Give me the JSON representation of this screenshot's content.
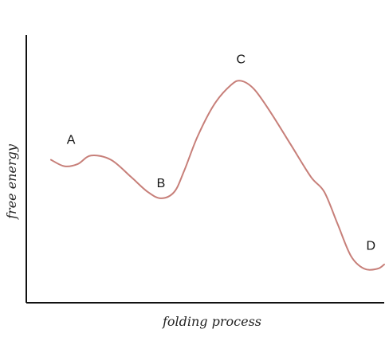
{
  "chart_data": {
    "type": "line",
    "xlabel": "folding process",
    "ylabel": "free energy",
    "grid": false,
    "legend": "none",
    "colors": {
      "axis": "#111111",
      "curve": "#c77f79"
    },
    "series": [
      {
        "values": [
          {
            "x": 0.0,
            "y": 0.55
          },
          {
            "x": 0.04,
            "y": 0.52
          },
          {
            "x": 0.08,
            "y": 0.53
          },
          {
            "x": 0.12,
            "y": 0.57
          },
          {
            "x": 0.18,
            "y": 0.55
          },
          {
            "x": 0.24,
            "y": 0.47
          },
          {
            "x": 0.29,
            "y": 0.4
          },
          {
            "x": 0.33,
            "y": 0.37
          },
          {
            "x": 0.37,
            "y": 0.4
          },
          {
            "x": 0.4,
            "y": 0.5
          },
          {
            "x": 0.44,
            "y": 0.66
          },
          {
            "x": 0.49,
            "y": 0.81
          },
          {
            "x": 0.54,
            "y": 0.9
          },
          {
            "x": 0.57,
            "y": 0.92
          },
          {
            "x": 0.61,
            "y": 0.88
          },
          {
            "x": 0.66,
            "y": 0.77
          },
          {
            "x": 0.72,
            "y": 0.62
          },
          {
            "x": 0.78,
            "y": 0.47
          },
          {
            "x": 0.82,
            "y": 0.4
          },
          {
            "x": 0.86,
            "y": 0.25
          },
          {
            "x": 0.9,
            "y": 0.1
          },
          {
            "x": 0.94,
            "y": 0.04
          },
          {
            "x": 0.98,
            "y": 0.04
          },
          {
            "x": 1.0,
            "y": 0.06
          }
        ]
      }
    ],
    "annotations": [
      {
        "text": "A",
        "x": 0.06,
        "y": 0.55
      },
      {
        "text": "B",
        "x": 0.33,
        "y": 0.37
      },
      {
        "text": "C",
        "x": 0.57,
        "y": 0.92
      },
      {
        "text": "D",
        "x": 0.96,
        "y": 0.04
      }
    ]
  }
}
